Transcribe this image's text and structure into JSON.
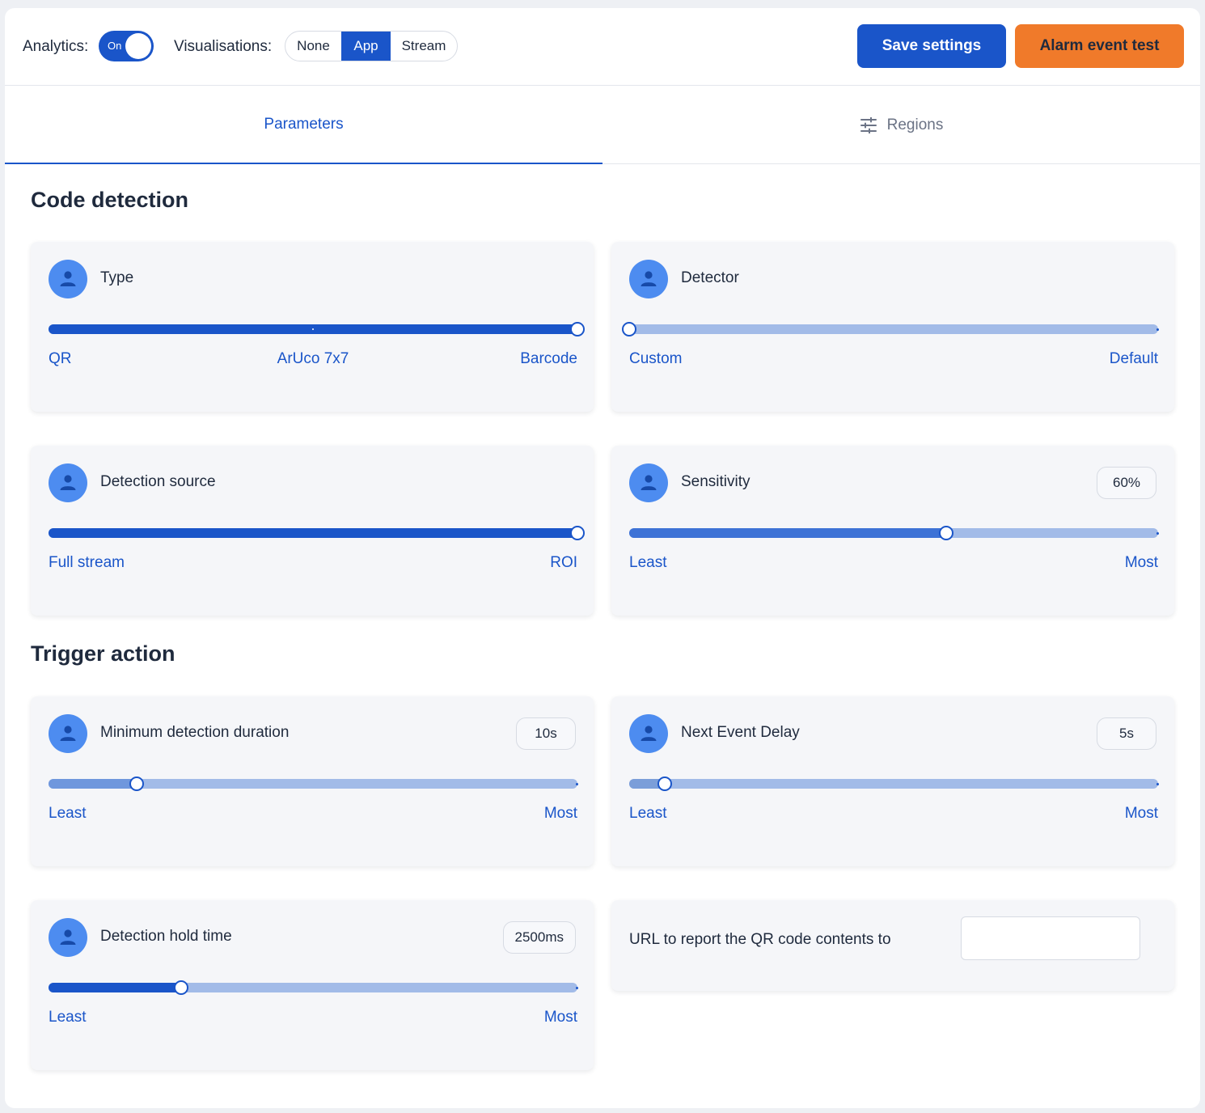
{
  "toolbar": {
    "analytics_label": "Analytics:",
    "analytics_toggle": "On",
    "visualisations_label": "Visualisations:",
    "visualisations_options": [
      "None",
      "App",
      "Stream"
    ],
    "visualisations_selected": "App",
    "save_label": "Save settings",
    "alarm_label": "Alarm event test"
  },
  "tabs": {
    "parameters": "Parameters",
    "regions": "Regions",
    "active": "Parameters"
  },
  "code_detection": {
    "title": "Code detection",
    "type": {
      "label": "Type",
      "marks": [
        "QR",
        "ArUco 7x7",
        "Barcode"
      ],
      "selected": "Barcode"
    },
    "detector": {
      "label": "Detector",
      "marks": [
        "Custom",
        "Default"
      ],
      "selected": "Custom"
    },
    "detection_source": {
      "label": "Detection source",
      "marks": [
        "Full stream",
        "ROI"
      ],
      "selected": "ROI"
    },
    "sensitivity": {
      "label": "Sensitivity",
      "value": "60%",
      "level": 0.6,
      "min_label": "Least",
      "max_label": "Most"
    }
  },
  "trigger_action": {
    "title": "Trigger action",
    "min_duration": {
      "label": "Minimum detection duration",
      "value": "10s",
      "level": 0.166,
      "min_label": "Least",
      "max_label": "Most"
    },
    "next_event_delay": {
      "label": "Next Event Delay",
      "value": "5s",
      "level": 0.068,
      "min_label": "Least",
      "max_label": "Most"
    },
    "hold_time": {
      "label": "Detection hold time",
      "value": "2500ms",
      "level": 0.25,
      "min_label": "Least",
      "max_label": "Most"
    },
    "url": {
      "label": "URL to report the QR code contents to",
      "value": ""
    }
  },
  "colors": {
    "primary": "#1a55c9",
    "accent_orange": "#f07a2a",
    "track": "#a2bbe8",
    "avatar": "#4d8cf0"
  },
  "icons": {
    "card_icon": "person-icon",
    "regions_icon": "sliders-icon"
  }
}
